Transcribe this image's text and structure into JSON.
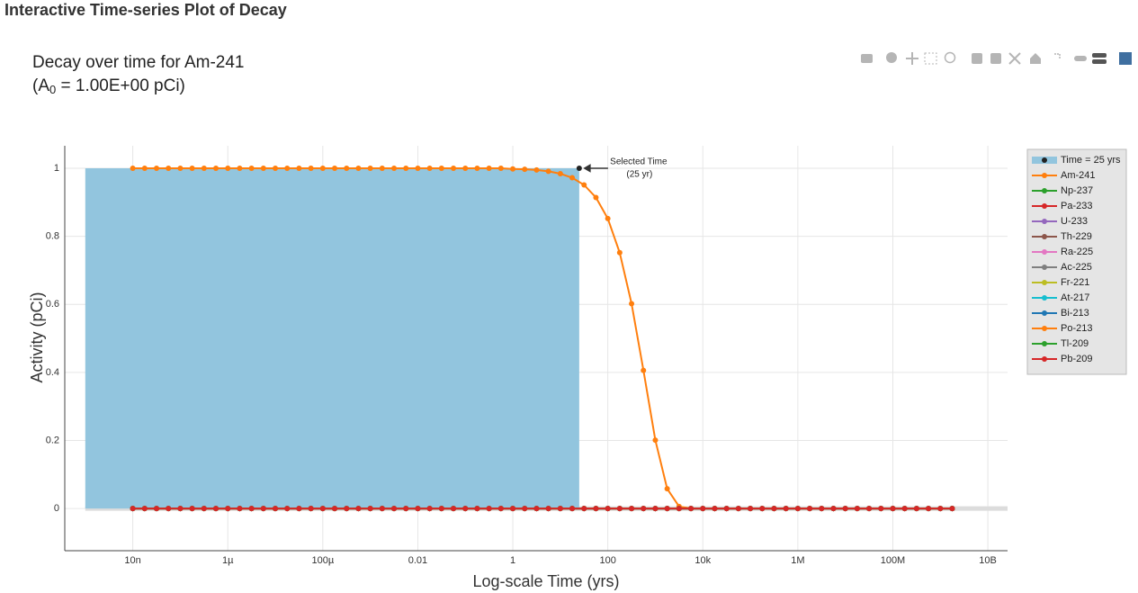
{
  "heading": "Interactive Time-series Plot of Decay",
  "chart_data": {
    "type": "line",
    "title": "Decay over time for Am-241",
    "subtitle": [
      "(A",
      "0",
      " = 1.00E+00 pCi)"
    ],
    "x_label": "Log-scale Time (yrs)",
    "y_label": "Activity (pCi)",
    "xscale": "log",
    "grid": true,
    "legend": "right",
    "xlim": [
      3.7e-10,
      26000000000.0
    ],
    "ylim": [
      -0.124,
      1.066
    ],
    "xticks": [
      {
        "value": 1e-08,
        "label": "10n"
      },
      {
        "value": 1e-06,
        "label": "1µ"
      },
      {
        "value": 0.0001,
        "label": "100µ"
      },
      0.01,
      1,
      100,
      {
        "value": 10000.0,
        "label": "10k"
      },
      {
        "value": 1000000.0,
        "label": "1M"
      },
      {
        "value": 100000000.0,
        "label": "100M"
      },
      {
        "value": 10000000000.0,
        "label": "10B"
      }
    ],
    "yticks": [
      0,
      0.2,
      0.4,
      0.6,
      0.8,
      1
    ],
    "annotation": {
      "text": [
        "Selected Time",
        "(25 yr)"
      ],
      "x": 25,
      "y": 1
    },
    "x": [
      1e-08,
      1.778e-08,
      3.162e-08,
      5.623e-08,
      1e-07,
      1.778e-07,
      3.162e-07,
      5.623e-07,
      1e-06,
      1.778e-06,
      3.162e-06,
      5.623e-06,
      1e-05,
      1.778e-05,
      3.162e-05,
      5.623e-05,
      0.0001,
      0.0001778,
      0.0003162,
      0.0005623,
      0.001,
      0.001778,
      0.003162,
      0.005623,
      0.01,
      0.01778,
      0.03162,
      0.05623,
      0.1,
      0.1778,
      0.3162,
      0.5623,
      1,
      1.778,
      3.162,
      5.623,
      10,
      17.78,
      31.62,
      56.23,
      100,
      177.8,
      316.2,
      562.3,
      1000,
      1778,
      3162,
      5623,
      10000.0,
      17780.0,
      31620.0,
      56230.0,
      100000.0,
      177800.0,
      316200.0,
      562300.0,
      1000000.0,
      1778000.0,
      3162000.0,
      5623000.0,
      10000000.0,
      17780000.0,
      31620000.0,
      56230000.0,
      100000000.0,
      177800000.0,
      316200000.0,
      562300000.0,
      1000000000.0,
      1778000000.0
    ],
    "series": [
      {
        "name": "Time = 25 yrs",
        "color": "#92c5de",
        "marker_color": "#222222",
        "fill": true,
        "x": [
          1e-09,
          25
        ],
        "values": [
          1,
          1
        ]
      },
      {
        "name": "Am-241",
        "color": "#ff7f0e",
        "values": [
          1,
          1,
          1,
          1,
          1,
          1,
          1,
          1,
          1,
          1,
          1,
          1,
          1,
          1,
          1,
          1,
          1,
          1,
          1,
          1,
          1,
          1,
          1,
          1,
          1,
          1,
          1,
          1,
          1,
          1,
          1,
          1,
          0.998,
          0.997,
          0.995,
          0.991,
          0.984,
          0.972,
          0.951,
          0.914,
          0.852,
          0.752,
          0.602,
          0.406,
          0.201,
          0.058,
          0.006,
          0,
          0,
          0,
          0,
          0,
          0,
          0,
          0,
          0,
          0,
          0,
          0,
          0,
          0,
          0,
          0,
          0,
          0,
          0,
          0,
          0,
          0,
          0
        ]
      },
      {
        "name": "Np-237",
        "color": "#2ca02c",
        "values": [
          0,
          0,
          0,
          0,
          0,
          0,
          0,
          0,
          0,
          0,
          0,
          0,
          0,
          0,
          0,
          0,
          0,
          0,
          0,
          0,
          0,
          0,
          0,
          0,
          0,
          0,
          0,
          0,
          0,
          0,
          0,
          0,
          0,
          0,
          0,
          0,
          0,
          0,
          0,
          0,
          0,
          0,
          0,
          0,
          0,
          0,
          0,
          0,
          0,
          0,
          0,
          0,
          0,
          0,
          0,
          0,
          0,
          0,
          0,
          0,
          0,
          0,
          0,
          0,
          0,
          0,
          0,
          0,
          0,
          0
        ]
      },
      {
        "name": "Pa-233",
        "color": "#d62728",
        "values": [
          0,
          0,
          0,
          0,
          0,
          0,
          0,
          0,
          0,
          0,
          0,
          0,
          0,
          0,
          0,
          0,
          0,
          0,
          0,
          0,
          0,
          0,
          0,
          0,
          0,
          0,
          0,
          0,
          0,
          0,
          0,
          0,
          0,
          0,
          0,
          0,
          0,
          0,
          0,
          0,
          0,
          0,
          0,
          0,
          0,
          0,
          0,
          0,
          0,
          0,
          0,
          0,
          0,
          0,
          0,
          0,
          0,
          0,
          0,
          0,
          0,
          0,
          0,
          0,
          0,
          0,
          0,
          0,
          0,
          0
        ]
      },
      {
        "name": "U-233",
        "color": "#9467bd",
        "values": [
          0,
          0,
          0,
          0,
          0,
          0,
          0,
          0,
          0,
          0,
          0,
          0,
          0,
          0,
          0,
          0,
          0,
          0,
          0,
          0,
          0,
          0,
          0,
          0,
          0,
          0,
          0,
          0,
          0,
          0,
          0,
          0,
          0,
          0,
          0,
          0,
          0,
          0,
          0,
          0,
          0,
          0,
          0,
          0,
          0,
          0,
          0,
          0,
          0,
          0,
          0,
          0,
          0,
          0,
          0,
          0,
          0,
          0,
          0,
          0,
          0,
          0,
          0,
          0,
          0,
          0,
          0,
          0,
          0,
          0
        ]
      },
      {
        "name": "Th-229",
        "color": "#8c564b",
        "values": [
          0,
          0,
          0,
          0,
          0,
          0,
          0,
          0,
          0,
          0,
          0,
          0,
          0,
          0,
          0,
          0,
          0,
          0,
          0,
          0,
          0,
          0,
          0,
          0,
          0,
          0,
          0,
          0,
          0,
          0,
          0,
          0,
          0,
          0,
          0,
          0,
          0,
          0,
          0,
          0,
          0,
          0,
          0,
          0,
          0,
          0,
          0,
          0,
          0,
          0,
          0,
          0,
          0,
          0,
          0,
          0,
          0,
          0,
          0,
          0,
          0,
          0,
          0,
          0,
          0,
          0,
          0,
          0,
          0,
          0
        ]
      },
      {
        "name": "Ra-225",
        "color": "#e377c2",
        "values": [
          0,
          0,
          0,
          0,
          0,
          0,
          0,
          0,
          0,
          0,
          0,
          0,
          0,
          0,
          0,
          0,
          0,
          0,
          0,
          0,
          0,
          0,
          0,
          0,
          0,
          0,
          0,
          0,
          0,
          0,
          0,
          0,
          0,
          0,
          0,
          0,
          0,
          0,
          0,
          0,
          0,
          0,
          0,
          0,
          0,
          0,
          0,
          0,
          0,
          0,
          0,
          0,
          0,
          0,
          0,
          0,
          0,
          0,
          0,
          0,
          0,
          0,
          0,
          0,
          0,
          0,
          0,
          0,
          0,
          0
        ]
      },
      {
        "name": "Ac-225",
        "color": "#7f7f7f",
        "values": [
          0,
          0,
          0,
          0,
          0,
          0,
          0,
          0,
          0,
          0,
          0,
          0,
          0,
          0,
          0,
          0,
          0,
          0,
          0,
          0,
          0,
          0,
          0,
          0,
          0,
          0,
          0,
          0,
          0,
          0,
          0,
          0,
          0,
          0,
          0,
          0,
          0,
          0,
          0,
          0,
          0,
          0,
          0,
          0,
          0,
          0,
          0,
          0,
          0,
          0,
          0,
          0,
          0,
          0,
          0,
          0,
          0,
          0,
          0,
          0,
          0,
          0,
          0,
          0,
          0,
          0,
          0,
          0,
          0,
          0
        ]
      },
      {
        "name": "Fr-221",
        "color": "#bcbd22",
        "values": [
          0,
          0,
          0,
          0,
          0,
          0,
          0,
          0,
          0,
          0,
          0,
          0,
          0,
          0,
          0,
          0,
          0,
          0,
          0,
          0,
          0,
          0,
          0,
          0,
          0,
          0,
          0,
          0,
          0,
          0,
          0,
          0,
          0,
          0,
          0,
          0,
          0,
          0,
          0,
          0,
          0,
          0,
          0,
          0,
          0,
          0,
          0,
          0,
          0,
          0,
          0,
          0,
          0,
          0,
          0,
          0,
          0,
          0,
          0,
          0,
          0,
          0,
          0,
          0,
          0,
          0,
          0,
          0,
          0,
          0
        ]
      },
      {
        "name": "At-217",
        "color": "#17becf",
        "values": [
          0,
          0,
          0,
          0,
          0,
          0,
          0,
          0,
          0,
          0,
          0,
          0,
          0,
          0,
          0,
          0,
          0,
          0,
          0,
          0,
          0,
          0,
          0,
          0,
          0,
          0,
          0,
          0,
          0,
          0,
          0,
          0,
          0,
          0,
          0,
          0,
          0,
          0,
          0,
          0,
          0,
          0,
          0,
          0,
          0,
          0,
          0,
          0,
          0,
          0,
          0,
          0,
          0,
          0,
          0,
          0,
          0,
          0,
          0,
          0,
          0,
          0,
          0,
          0,
          0,
          0,
          0,
          0,
          0,
          0
        ]
      },
      {
        "name": "Bi-213",
        "color": "#1f77b4",
        "values": [
          0,
          0,
          0,
          0,
          0,
          0,
          0,
          0,
          0,
          0,
          0,
          0,
          0,
          0,
          0,
          0,
          0,
          0,
          0,
          0,
          0,
          0,
          0,
          0,
          0,
          0,
          0,
          0,
          0,
          0,
          0,
          0,
          0,
          0,
          0,
          0,
          0,
          0,
          0,
          0,
          0,
          0,
          0,
          0,
          0,
          0,
          0,
          0,
          0,
          0,
          0,
          0,
          0,
          0,
          0,
          0,
          0,
          0,
          0,
          0,
          0,
          0,
          0,
          0,
          0,
          0,
          0,
          0,
          0,
          0
        ]
      },
      {
        "name": "Po-213",
        "color": "#ff7f0e",
        "values": [
          0,
          0,
          0,
          0,
          0,
          0,
          0,
          0,
          0,
          0,
          0,
          0,
          0,
          0,
          0,
          0,
          0,
          0,
          0,
          0,
          0,
          0,
          0,
          0,
          0,
          0,
          0,
          0,
          0,
          0,
          0,
          0,
          0,
          0,
          0,
          0,
          0,
          0,
          0,
          0,
          0,
          0,
          0,
          0,
          0,
          0,
          0,
          0,
          0,
          0,
          0,
          0,
          0,
          0,
          0,
          0,
          0,
          0,
          0,
          0,
          0,
          0,
          0,
          0,
          0,
          0,
          0,
          0,
          0,
          0
        ]
      },
      {
        "name": "Tl-209",
        "color": "#2ca02c",
        "values": [
          0,
          0,
          0,
          0,
          0,
          0,
          0,
          0,
          0,
          0,
          0,
          0,
          0,
          0,
          0,
          0,
          0,
          0,
          0,
          0,
          0,
          0,
          0,
          0,
          0,
          0,
          0,
          0,
          0,
          0,
          0,
          0,
          0,
          0,
          0,
          0,
          0,
          0,
          0,
          0,
          0,
          0,
          0,
          0,
          0,
          0,
          0,
          0,
          0,
          0,
          0,
          0,
          0,
          0,
          0,
          0,
          0,
          0,
          0,
          0,
          0,
          0,
          0,
          0,
          0,
          0,
          0,
          0,
          0,
          0
        ]
      },
      {
        "name": "Pb-209",
        "color": "#d62728",
        "values": [
          0,
          0,
          0,
          0,
          0,
          0,
          0,
          0,
          0,
          0,
          0,
          0,
          0,
          0,
          0,
          0,
          0,
          0,
          0,
          0,
          0,
          0,
          0,
          0,
          0,
          0,
          0,
          0,
          0,
          0,
          0,
          0,
          0,
          0,
          0,
          0,
          0,
          0,
          0,
          0,
          0,
          0,
          0,
          0,
          0,
          0,
          0,
          0,
          0,
          0,
          0,
          0,
          0,
          0,
          0,
          0,
          0,
          0,
          0,
          0,
          0,
          0,
          0,
          0,
          0,
          0,
          0,
          0,
          0,
          0
        ]
      }
    ]
  }
}
